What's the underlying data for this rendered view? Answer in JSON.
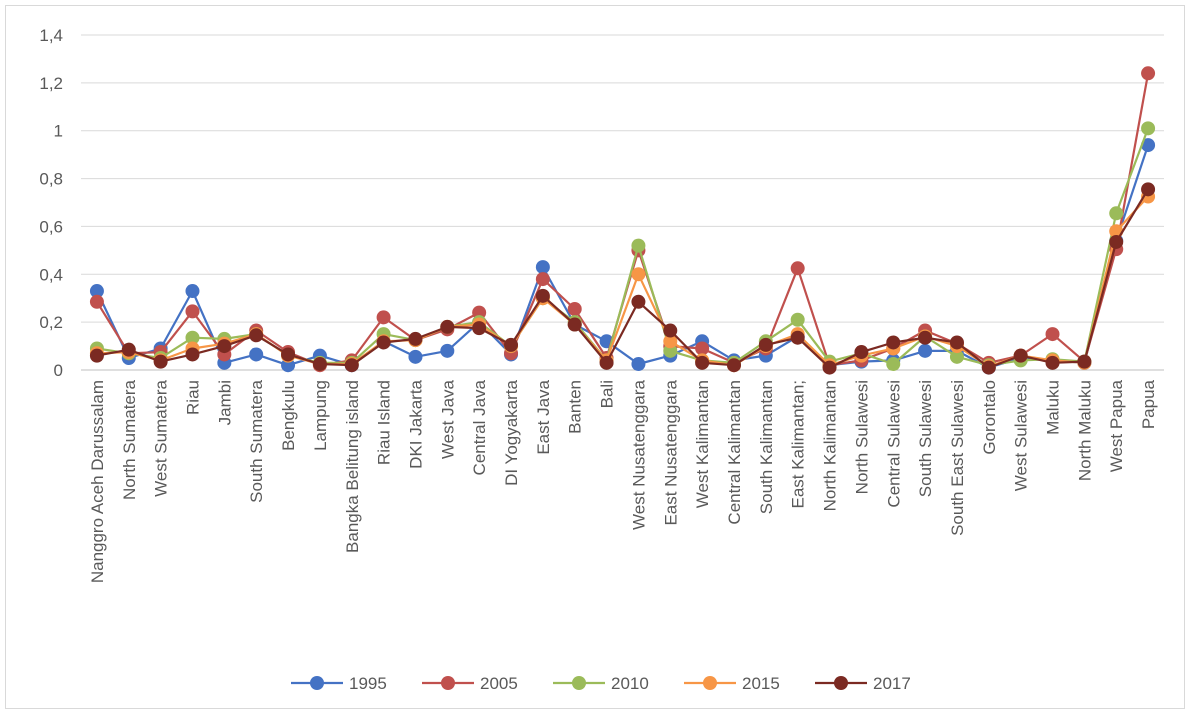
{
  "chart_data": {
    "type": "line",
    "title": "",
    "xlabel": "",
    "ylabel": "",
    "ylim": [
      0,
      1.4
    ],
    "y_ticks": [
      "0",
      "0,2",
      "0,4",
      "0,6",
      "0,8",
      "1",
      "1,2",
      "1,4"
    ],
    "grid": "horizontal",
    "legend_position": "bottom",
    "categories": [
      "Nanggro Aceh Darussalam",
      "North Sumatera",
      "West Sumatera",
      "Riau",
      "Jambi",
      "South Sumatera",
      "Bengkulu",
      "Lampung",
      "Bangka Belitung island",
      "Riau Island",
      "DKI Jakarta",
      "West Java",
      "Central Java",
      "DI Yogyakarta",
      "East Java",
      "Banten",
      "Bali",
      "West Nusatenggara",
      "East Nusatenggara",
      "West Kalimantan",
      "Central Kalimantan",
      "South Kalimantan",
      "East Kalimantan;",
      "North Kalimantan",
      "North Sulawesi",
      "Central Sulawesi",
      "South Sulawesi",
      "South East Sulawesi",
      "Gorontalo",
      "West Sulawesi",
      "Maluku",
      "North Maluku",
      "West Papua",
      "Papua"
    ],
    "series": [
      {
        "name": "1995",
        "color": "#4472C4",
        "values": [
          0.33,
          0.05,
          0.09,
          0.33,
          0.03,
          0.065,
          0.02,
          0.06,
          0.02,
          0.12,
          0.055,
          0.08,
          0.2,
          0.065,
          0.43,
          0.19,
          0.12,
          0.025,
          0.06,
          0.12,
          0.04,
          0.06,
          0.14,
          0.02,
          0.035,
          0.04,
          0.08,
          0.08,
          0.01,
          0.05,
          0.04,
          0.03,
          0.54,
          0.94
        ]
      },
      {
        "name": "2005",
        "color": "#C0504D",
        "values": [
          0.285,
          0.07,
          0.075,
          0.245,
          0.065,
          0.165,
          0.075,
          0.02,
          0.04,
          0.22,
          0.125,
          0.17,
          0.24,
          0.07,
          0.38,
          0.255,
          0.05,
          0.5,
          0.1,
          0.09,
          0.03,
          0.09,
          0.425,
          0.02,
          0.04,
          0.09,
          0.165,
          0.11,
          0.03,
          0.06,
          0.15,
          0.035,
          0.505,
          1.24
        ]
      },
      {
        "name": "2010",
        "color": "#9BBB59",
        "values": [
          0.09,
          0.07,
          0.05,
          0.135,
          0.13,
          0.15,
          0.06,
          0.03,
          0.03,
          0.15,
          0.125,
          0.18,
          0.2,
          0.1,
          0.3,
          0.2,
          0.04,
          0.52,
          0.08,
          0.04,
          0.03,
          0.12,
          0.21,
          0.035,
          0.07,
          0.025,
          0.14,
          0.055,
          0.02,
          0.04,
          0.045,
          0.035,
          0.655,
          1.01
        ]
      },
      {
        "name": "2015",
        "color": "#F79646",
        "values": [
          0.07,
          0.075,
          0.04,
          0.09,
          0.11,
          0.15,
          0.06,
          0.025,
          0.025,
          0.12,
          0.125,
          0.18,
          0.19,
          0.1,
          0.3,
          0.19,
          0.04,
          0.4,
          0.12,
          0.04,
          0.02,
          0.1,
          0.15,
          0.02,
          0.06,
          0.09,
          0.14,
          0.1,
          0.015,
          0.06,
          0.04,
          0.03,
          0.58,
          0.725
        ]
      },
      {
        "name": "2017",
        "color": "#7B2A22",
        "values": [
          0.06,
          0.085,
          0.035,
          0.065,
          0.1,
          0.145,
          0.065,
          0.025,
          0.02,
          0.115,
          0.13,
          0.18,
          0.175,
          0.105,
          0.31,
          0.19,
          0.03,
          0.285,
          0.165,
          0.03,
          0.02,
          0.105,
          0.135,
          0.01,
          0.075,
          0.115,
          0.135,
          0.115,
          0.01,
          0.06,
          0.03,
          0.035,
          0.535,
          0.755
        ]
      }
    ]
  }
}
